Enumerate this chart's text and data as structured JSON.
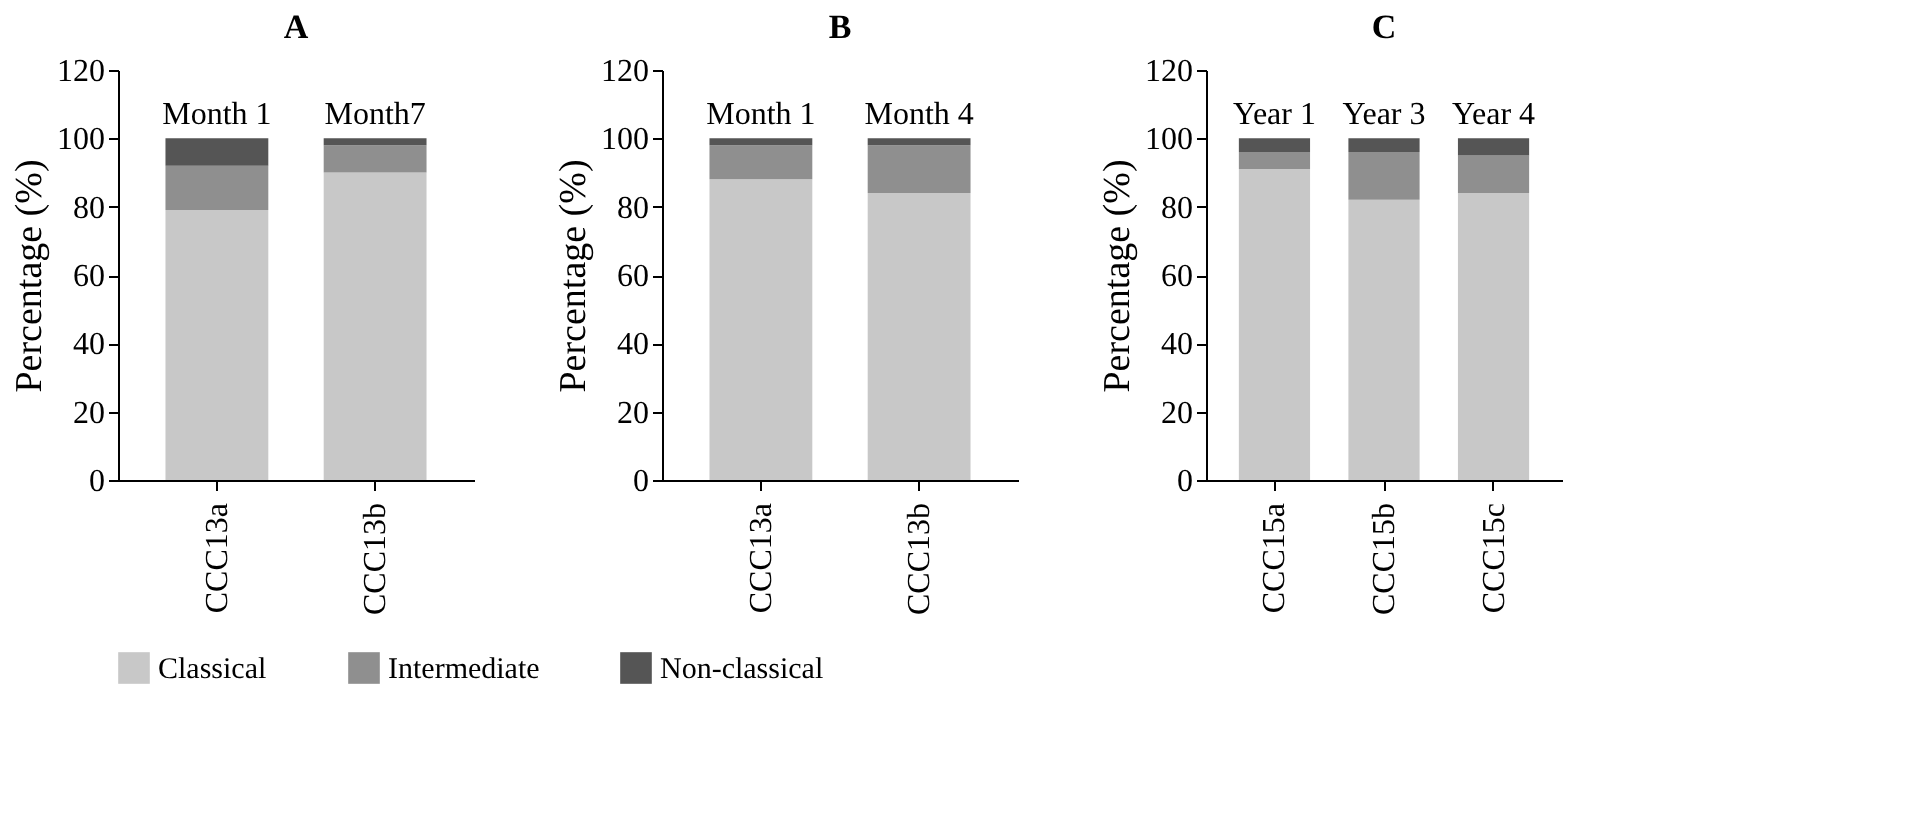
{
  "chart_data": [
    {
      "type": "bar",
      "title": "A",
      "ylabel": "Percentage (%)",
      "categories": [
        "CCC13a",
        "CCC13b"
      ],
      "stacked": true,
      "ylim": [
        0,
        120
      ],
      "yticks": [
        0,
        20,
        40,
        60,
        80,
        100,
        120
      ],
      "grid": false,
      "legend": "bottom",
      "series": [
        {
          "name": "Classical",
          "color": "#c8c8c8",
          "values": [
            79,
            90
          ]
        },
        {
          "name": "Intermediate",
          "color": "#8f8f8f",
          "values": [
            13,
            8
          ]
        },
        {
          "name": "Non-classical",
          "color": "#555555",
          "values": [
            8,
            2
          ]
        }
      ],
      "annotations": [
        {
          "text": "Month 1",
          "x": "CCC13a",
          "y": 100
        },
        {
          "text": "Month7",
          "x": "CCC13b",
          "y": 100
        }
      ]
    },
    {
      "type": "bar",
      "title": "B",
      "ylabel": "Percentage (%)",
      "categories": [
        "CCC13a",
        "CCC13b"
      ],
      "stacked": true,
      "ylim": [
        0,
        120
      ],
      "yticks": [
        0,
        20,
        40,
        60,
        80,
        100,
        120
      ],
      "grid": false,
      "legend": "bottom",
      "series": [
        {
          "name": "Classical",
          "color": "#c8c8c8",
          "values": [
            88,
            84
          ]
        },
        {
          "name": "Intermediate",
          "color": "#8f8f8f",
          "values": [
            10,
            14
          ]
        },
        {
          "name": "Non-classical",
          "color": "#555555",
          "values": [
            2,
            2
          ]
        }
      ],
      "annotations": [
        {
          "text": "Month 1",
          "x": "CCC13a",
          "y": 100
        },
        {
          "text": "Month 4",
          "x": "CCC13b",
          "y": 100
        }
      ]
    },
    {
      "type": "bar",
      "title": "C",
      "ylabel": "Percentage (%)",
      "categories": [
        "CCC15a",
        "CCC15b",
        "CCC15c"
      ],
      "stacked": true,
      "ylim": [
        0,
        120
      ],
      "yticks": [
        0,
        20,
        40,
        60,
        80,
        100,
        120
      ],
      "grid": false,
      "legend": "bottom",
      "series": [
        {
          "name": "Classical",
          "color": "#c8c8c8",
          "values": [
            91,
            82,
            84
          ]
        },
        {
          "name": "Intermediate",
          "color": "#8f8f8f",
          "values": [
            5,
            14,
            11
          ]
        },
        {
          "name": "Non-classical",
          "color": "#555555",
          "values": [
            4,
            4,
            5
          ]
        }
      ],
      "annotations": [
        {
          "text": "Year 1",
          "x": "CCC15a",
          "y": 100
        },
        {
          "text": "Year 3",
          "x": "CCC15b",
          "y": 100
        },
        {
          "text": "Year 4",
          "x": "CCC15c",
          "y": 100
        }
      ]
    }
  ]
}
